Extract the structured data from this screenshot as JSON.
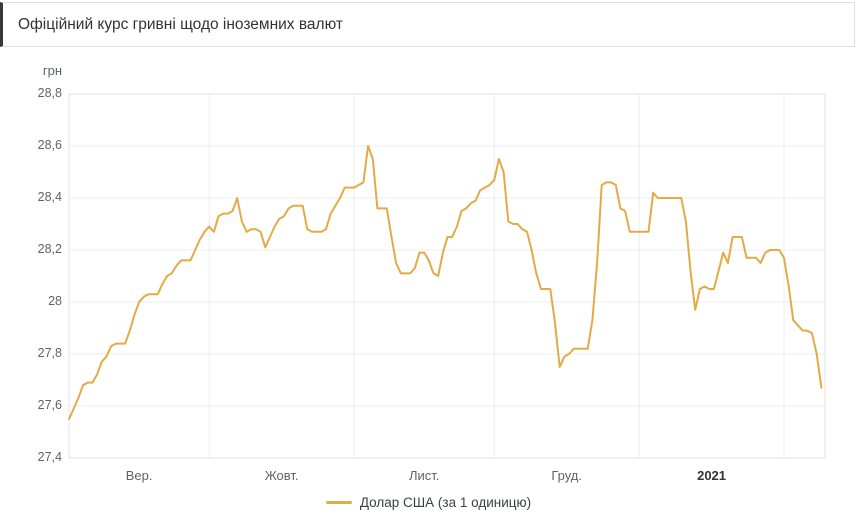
{
  "header": {
    "title": "Офіційний курс гривні щодо іноземних валют"
  },
  "chart": {
    "unit_label": "грн",
    "legend_label": "Долар США (за 1 одиницю)"
  },
  "colors": {
    "line": "#e3ab46",
    "grid": "#ececec",
    "plot_border": "#e3e3e3",
    "tick_text": "#5f6368",
    "title_text": "#333333",
    "header_accent": "#383838"
  },
  "chart_data": {
    "type": "line",
    "title": "Офіційний курс гривні щодо іноземних валют",
    "ylabel": "грн",
    "ylim": [
      27.4,
      28.8
    ],
    "y_tick_step": 0.2,
    "y_tick_labels": [
      "28,8",
      "28,6",
      "28,4",
      "28,2",
      "28",
      "27,8",
      "27,6",
      "27,4"
    ],
    "grid": true,
    "legend_position": "bottom",
    "x_months": [
      {
        "label": "Вер.",
        "days": 30,
        "bold": false
      },
      {
        "label": "Жовт.",
        "days": 31,
        "bold": false
      },
      {
        "label": "Лист.",
        "days": 30,
        "bold": false
      },
      {
        "label": "Груд.",
        "days": 31,
        "bold": false
      },
      {
        "label": "2021",
        "days": 31,
        "bold": true
      }
    ],
    "series": [
      {
        "name": "Долар США (за 1 одиницю)",
        "color": "#e3ab46",
        "sampling": "daily",
        "values": [
          27.55,
          27.59,
          27.63,
          27.68,
          27.69,
          27.69,
          27.72,
          27.77,
          27.79,
          27.83,
          27.84,
          27.84,
          27.84,
          27.89,
          27.95,
          28.0,
          28.02,
          28.03,
          28.03,
          28.03,
          28.07,
          28.1,
          28.11,
          28.14,
          28.16,
          28.16,
          28.16,
          28.2,
          28.24,
          28.27,
          28.29,
          28.27,
          28.33,
          28.34,
          28.34,
          28.35,
          28.4,
          28.31,
          28.27,
          28.28,
          28.28,
          28.27,
          28.21,
          28.25,
          28.29,
          28.32,
          28.33,
          28.36,
          28.37,
          28.37,
          28.37,
          28.28,
          28.27,
          28.27,
          28.27,
          28.28,
          28.34,
          28.37,
          28.4,
          28.44,
          28.44,
          28.44,
          28.45,
          28.46,
          28.6,
          28.55,
          28.36,
          28.36,
          28.36,
          28.25,
          28.15,
          28.11,
          28.11,
          28.11,
          28.13,
          28.19,
          28.19,
          28.16,
          28.11,
          28.1,
          28.19,
          28.25,
          28.25,
          28.29,
          28.35,
          28.36,
          28.38,
          28.39,
          28.43,
          28.44,
          28.45,
          28.47,
          28.55,
          28.5,
          28.31,
          28.3,
          28.3,
          28.28,
          28.27,
          28.2,
          28.11,
          28.05,
          28.05,
          28.05,
          27.92,
          27.75,
          27.79,
          27.8,
          27.82,
          27.82,
          27.82,
          27.82,
          27.93,
          28.15,
          28.45,
          28.46,
          28.46,
          28.45,
          28.36,
          28.35,
          28.27,
          28.27,
          28.27,
          28.27,
          28.27,
          28.42,
          28.4,
          28.4,
          28.4,
          28.4,
          28.4,
          28.4,
          28.31,
          28.12,
          27.97,
          28.05,
          28.06,
          28.05,
          28.05,
          28.12,
          28.19,
          28.15,
          28.25,
          28.25,
          28.25,
          28.17,
          28.17,
          28.17,
          28.15,
          28.19,
          28.2,
          28.2,
          28.2,
          28.17,
          28.06,
          27.93,
          27.91,
          27.89,
          27.89,
          27.88,
          27.8,
          27.67
        ]
      }
    ]
  }
}
